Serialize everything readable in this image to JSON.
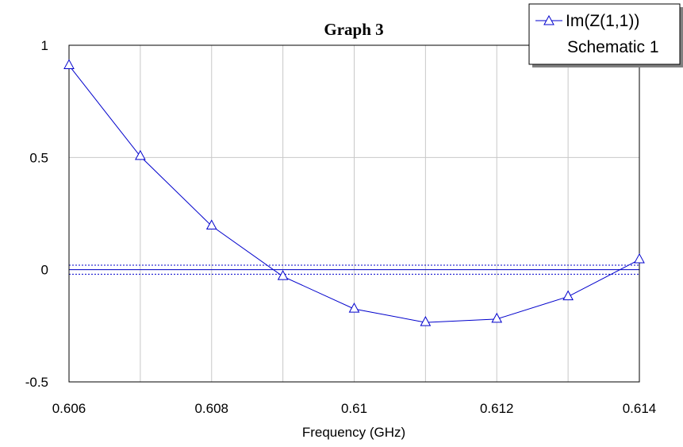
{
  "chart_data": {
    "type": "line",
    "title": "Graph 3",
    "xlabel": "Frequency (GHz)",
    "ylabel": "",
    "xlim": [
      0.606,
      0.614
    ],
    "ylim": [
      -0.5,
      1
    ],
    "xticks": [
      0.606,
      0.608,
      0.61,
      0.612,
      0.614
    ],
    "xtick_labels": [
      "0.606",
      "0.608",
      "0.61",
      "0.612",
      "0.614"
    ],
    "yticks": [
      -0.5,
      0,
      0.5,
      1
    ],
    "ytick_labels": [
      "-0.5",
      "0",
      "0.5",
      "1"
    ],
    "x_minor_gridlines": [
      0.607,
      0.609,
      0.611,
      0.613
    ],
    "grid": true,
    "legend_position": "top-right",
    "series": [
      {
        "name": "Im(Z(1,1))",
        "subtitle": "Schematic 1",
        "color": "#0000cc",
        "marker": "triangle",
        "x": [
          0.606,
          0.607,
          0.608,
          0.609,
          0.61,
          0.611,
          0.612,
          0.613,
          0.614
        ],
        "values": [
          0.91,
          0.505,
          0.195,
          -0.03,
          -0.175,
          -0.235,
          -0.22,
          -0.12,
          0.045
        ]
      }
    ],
    "reference_lines": [
      {
        "y": 0.02,
        "style": "dotted",
        "color": "#0000cc"
      },
      {
        "y": 0,
        "style": "solid",
        "color": "#0000cc"
      },
      {
        "y": -0.02,
        "style": "dotted",
        "color": "#0000cc"
      }
    ]
  }
}
